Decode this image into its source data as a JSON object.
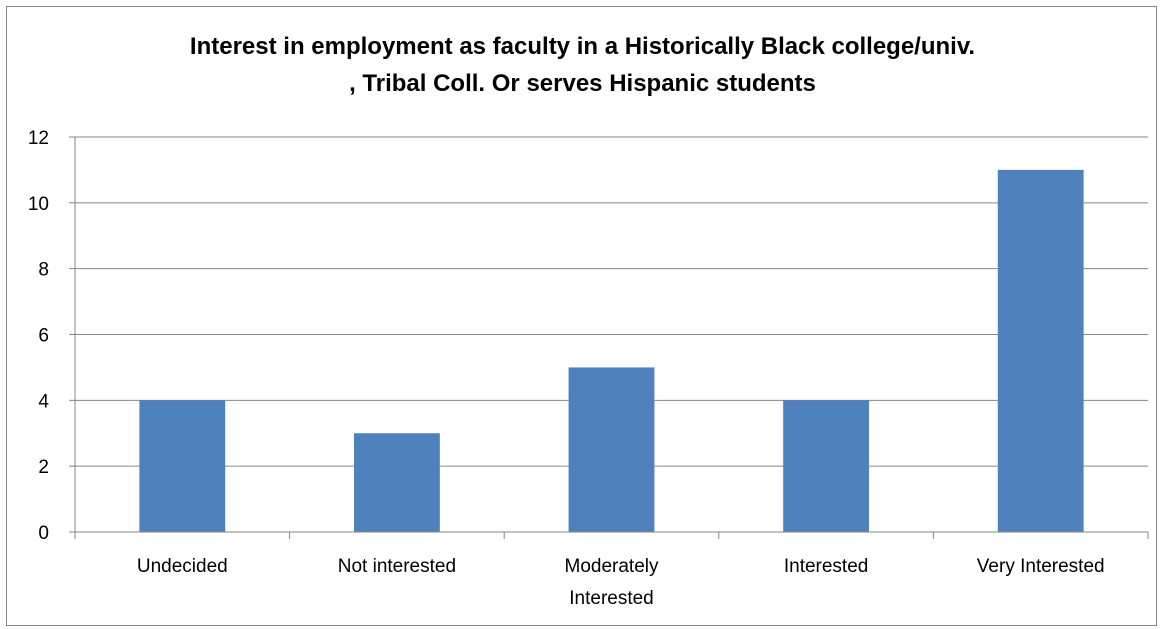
{
  "chart_data": {
    "type": "bar",
    "title_lines": [
      "Interest in employment as faculty  in a Historically Black college/univ.",
      ", Tribal Coll. Or serves Hispanic students"
    ],
    "categories": [
      [
        "Undecided"
      ],
      [
        "Not interested"
      ],
      [
        "Moderately",
        "Interested"
      ],
      [
        "Interested"
      ],
      [
        "Very Interested"
      ]
    ],
    "values": [
      4,
      3,
      5,
      4,
      11
    ],
    "ylim": [
      0,
      12
    ],
    "yticks": [
      0,
      2,
      4,
      6,
      8,
      10,
      12
    ],
    "grid": true,
    "legend": "none",
    "colors": {
      "bar": "#4f81bd",
      "grid": "#868686",
      "axis": "#868686"
    }
  }
}
